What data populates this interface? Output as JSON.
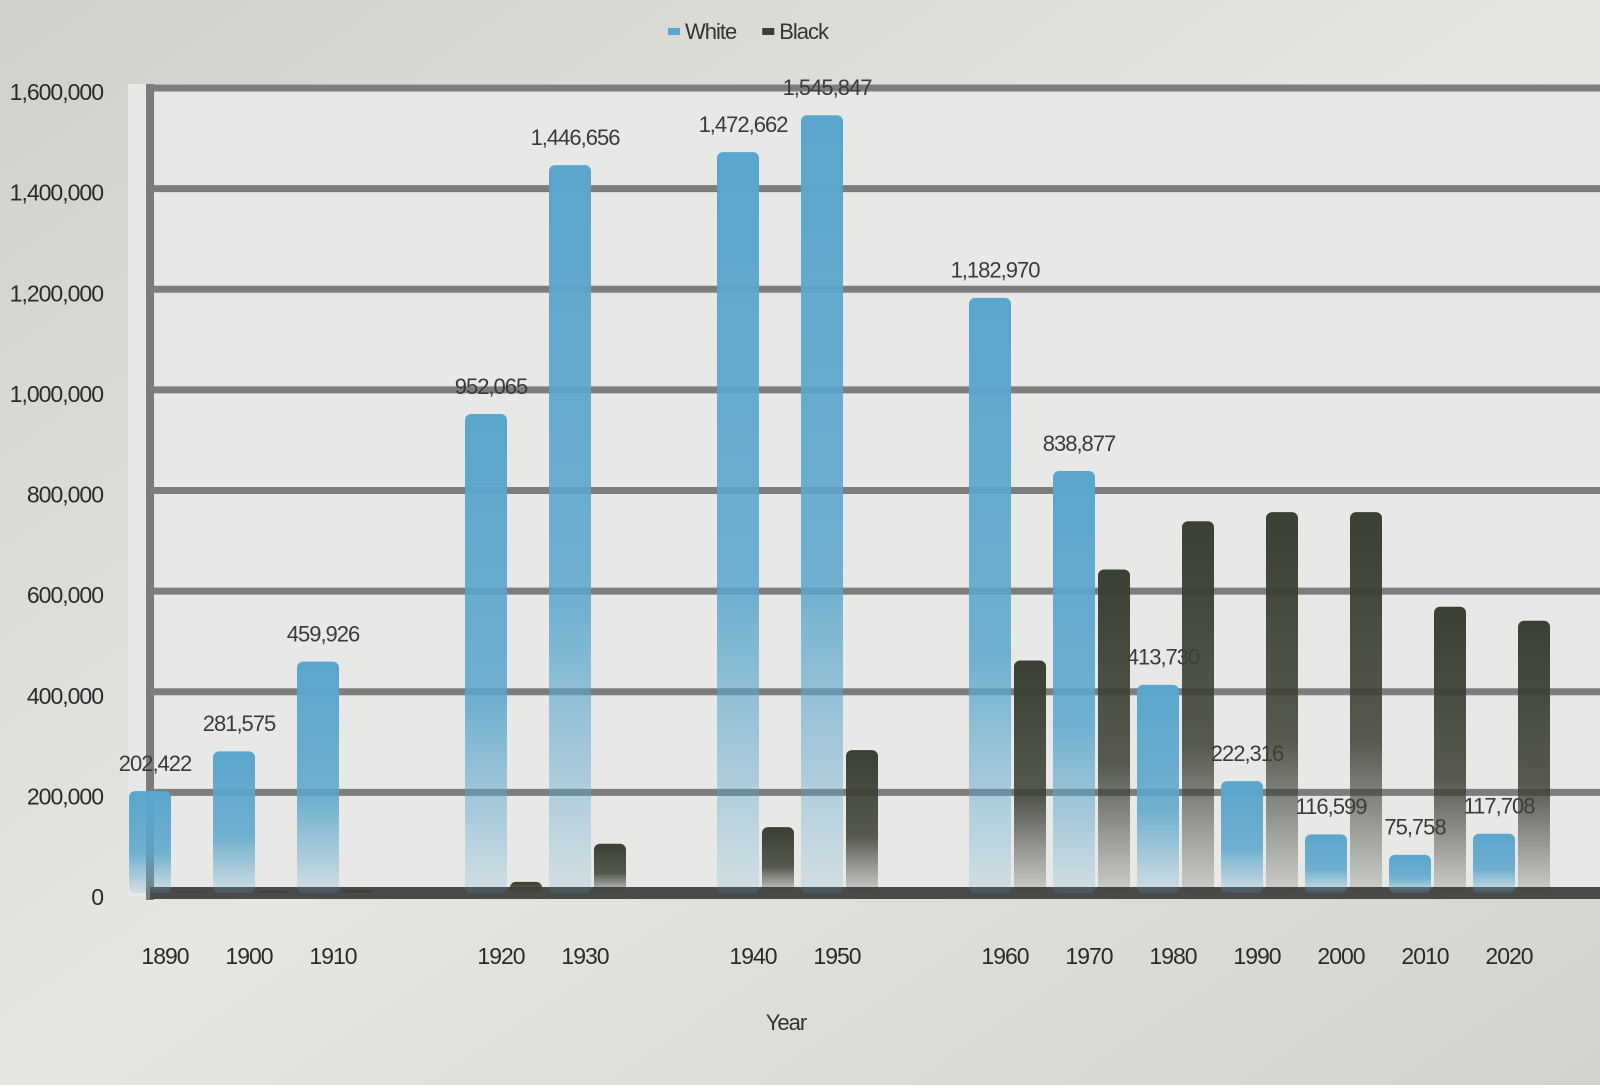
{
  "chart_data": {
    "type": "bar",
    "x_label": "Year",
    "categories": [
      "1890",
      "1900",
      "1910",
      null,
      "1920",
      "1930",
      null,
      "1940",
      "1950",
      null,
      "1960",
      "1970",
      "1980",
      "1990",
      "2000",
      "2010",
      "2020"
    ],
    "series": [
      {
        "name": "White",
        "color": "#5aa6cc",
        "values": [
          202422,
          281575,
          459926,
          null,
          952065,
          1446656,
          null,
          1472662,
          1545847,
          null,
          1182970,
          838877,
          413730,
          222316,
          116599,
          75758,
          117708
        ],
        "value_labels": [
          "202,422",
          "281,575",
          "459,926",
          null,
          "952,065",
          "1,446,656",
          null,
          "1,472,662",
          "1,545,847",
          null,
          "1,182,970",
          "838,877",
          "413,730",
          "222,316",
          "116,599",
          "75,758",
          "117,708"
        ]
      },
      {
        "name": "Black",
        "color": "#3b4034",
        "values": [
          3000,
          4000,
          6000,
          null,
          22000,
          98000,
          null,
          131000,
          284000,
          null,
          462000,
          643000,
          739000,
          757000,
          757000,
          569000,
          541000
        ]
      }
    ],
    "ylim": [
      0,
      1600000
    ],
    "yticks": [
      0,
      {
        "value": 200000,
        "label": "200,000"
      },
      {
        "value": 400000,
        "label": "400,000"
      },
      {
        "value": 600000,
        "label": "600,000"
      },
      {
        "value": 800000,
        "label": "800,000"
      },
      {
        "value": 1000000,
        "label": "1,000,000"
      },
      {
        "value": 1200000,
        "label": "1,200,000"
      },
      {
        "value": 1400000,
        "label": "1,400,000"
      },
      {
        "value": 1600000,
        "label": "1,600,000"
      }
    ],
    "grid": true,
    "legend": "top"
  }
}
